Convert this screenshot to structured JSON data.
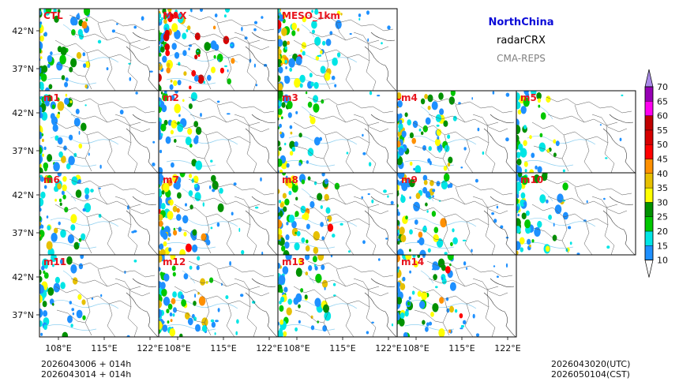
{
  "title": {
    "region": "NorthChina",
    "variable": "radarCRX",
    "model": "CMA-REPS"
  },
  "panels": [
    {
      "label": "CTL",
      "intensity": 0.55,
      "seed": 3
    },
    {
      "label": "MAX",
      "intensity": 1.0,
      "seed": 7
    },
    {
      "label": "MESO_1km",
      "intensity": 0.8,
      "seed": 11
    },
    {
      "label": "m1",
      "intensity": 0.45,
      "seed": 13
    },
    {
      "label": "m2",
      "intensity": 0.3,
      "seed": 17
    },
    {
      "label": "m3",
      "intensity": 0.35,
      "seed": 19
    },
    {
      "label": "m4",
      "intensity": 0.7,
      "seed": 23
    },
    {
      "label": "m5",
      "intensity": 0.3,
      "seed": 29
    },
    {
      "label": "m6",
      "intensity": 0.45,
      "seed": 31
    },
    {
      "label": "m7",
      "intensity": 0.75,
      "seed": 37
    },
    {
      "label": "m8",
      "intensity": 0.7,
      "seed": 41
    },
    {
      "label": "m9",
      "intensity": 0.65,
      "seed": 43
    },
    {
      "label": "m10",
      "intensity": 0.5,
      "seed": 47
    },
    {
      "label": "m11",
      "intensity": 0.35,
      "seed": 53
    },
    {
      "label": "m12",
      "intensity": 0.65,
      "seed": 59
    },
    {
      "label": "m13",
      "intensity": 0.45,
      "seed": 61
    },
    {
      "label": "m14",
      "intensity": 0.75,
      "seed": 67
    }
  ],
  "axes": {
    "lat_ticks": [
      "42°N",
      "37°N"
    ],
    "lon_ticks": [
      "108°E",
      "115°E",
      "122°E"
    ]
  },
  "colorbar": {
    "levels": [
      "10",
      "15",
      "20",
      "25",
      "30",
      "35",
      "40",
      "45",
      "50",
      "55",
      "60",
      "65",
      "70"
    ],
    "colors": [
      "#1e90ff",
      "#00e5e5",
      "#00c800",
      "#009100",
      "#ffff00",
      "#e7c000",
      "#ff9000",
      "#ff0000",
      "#d60000",
      "#c00000",
      "#ff00f0",
      "#9600b4",
      "#a98ae8"
    ]
  },
  "footer": {
    "init_line1": "2026043006  +  014h",
    "init_line2": "2026043014  +  014h",
    "valid_utc": "2026043020(UTC)",
    "valid_cst": "2026050104(CST)"
  }
}
